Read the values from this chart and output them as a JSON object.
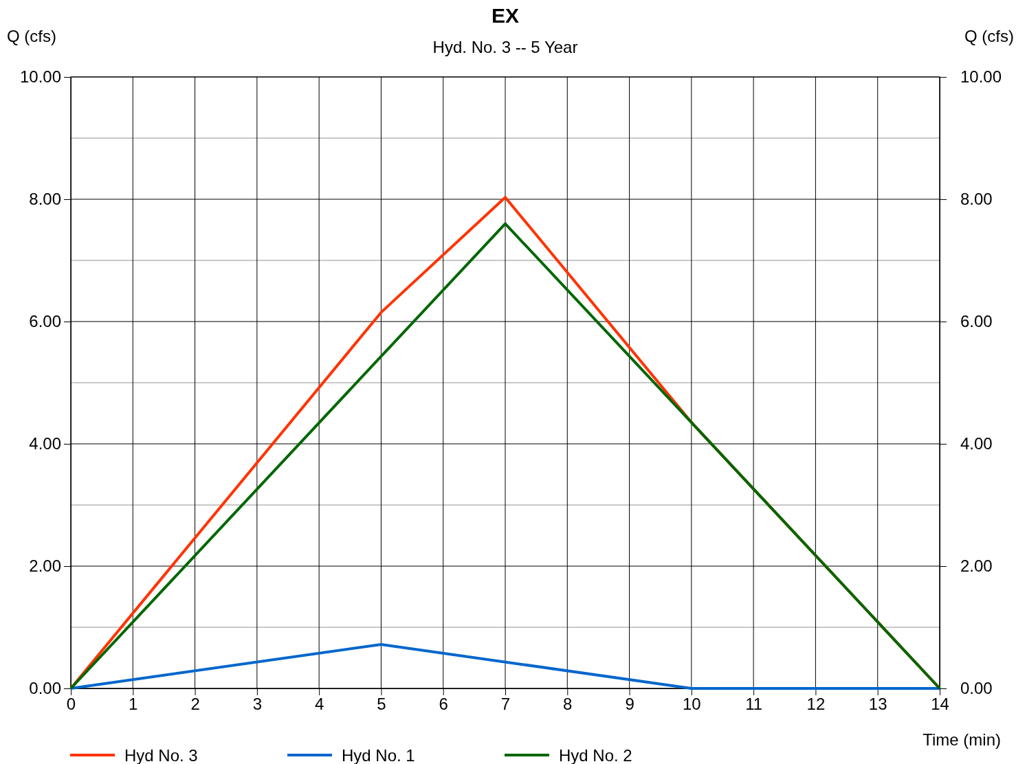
{
  "chart_data": {
    "type": "line",
    "title": "EX",
    "subtitle": "Hyd. No. 3 -- 5 Year",
    "xlabel": "Time (min)",
    "ylabel": "Q (cfs)",
    "y2label": "Q (cfs)",
    "xlim": [
      0,
      14
    ],
    "xticks": [
      0,
      1,
      2,
      3,
      4,
      5,
      6,
      7,
      8,
      9,
      10,
      11,
      12,
      13,
      14
    ],
    "ylim": [
      0,
      10
    ],
    "yticks": [
      {
        "value": 0,
        "label": "0.00"
      },
      {
        "value": 1,
        "label": null
      },
      {
        "value": 2,
        "label": "2.00"
      },
      {
        "value": 3,
        "label": null
      },
      {
        "value": 4,
        "label": "4.00"
      },
      {
        "value": 5,
        "label": null
      },
      {
        "value": 6,
        "label": "6.00"
      },
      {
        "value": 7,
        "label": null
      },
      {
        "value": 8,
        "label": "8.00"
      },
      {
        "value": 9,
        "label": null
      },
      {
        "value": 10,
        "label": "10.00"
      }
    ],
    "y2lim": [
      0,
      10
    ],
    "y2ticks": [
      {
        "value": 0,
        "label": "0.00"
      },
      {
        "value": 2,
        "label": "2.00"
      },
      {
        "value": 4,
        "label": "4.00"
      },
      {
        "value": 6,
        "label": "6.00"
      },
      {
        "value": 8,
        "label": "8.00"
      },
      {
        "value": 10,
        "label": "10.00"
      }
    ],
    "grid": true,
    "legend": "bottom",
    "marker": "none",
    "line_style": "solid",
    "series": [
      {
        "name": "Hyd No. 3",
        "color": "#ff3300",
        "x": [
          0,
          5,
          7,
          10,
          14
        ],
        "values": [
          0,
          6.15,
          8.03,
          4.35,
          0
        ]
      },
      {
        "name": "Hyd No. 1",
        "color": "#0066cc",
        "x": [
          0,
          5,
          10,
          14
        ],
        "values": [
          0,
          0.72,
          0,
          0
        ]
      },
      {
        "name": "Hyd No. 2",
        "color": "#006600",
        "x": [
          0,
          5,
          7,
          10,
          14
        ],
        "values": [
          0,
          5.43,
          7.6,
          4.35,
          0
        ]
      }
    ]
  }
}
